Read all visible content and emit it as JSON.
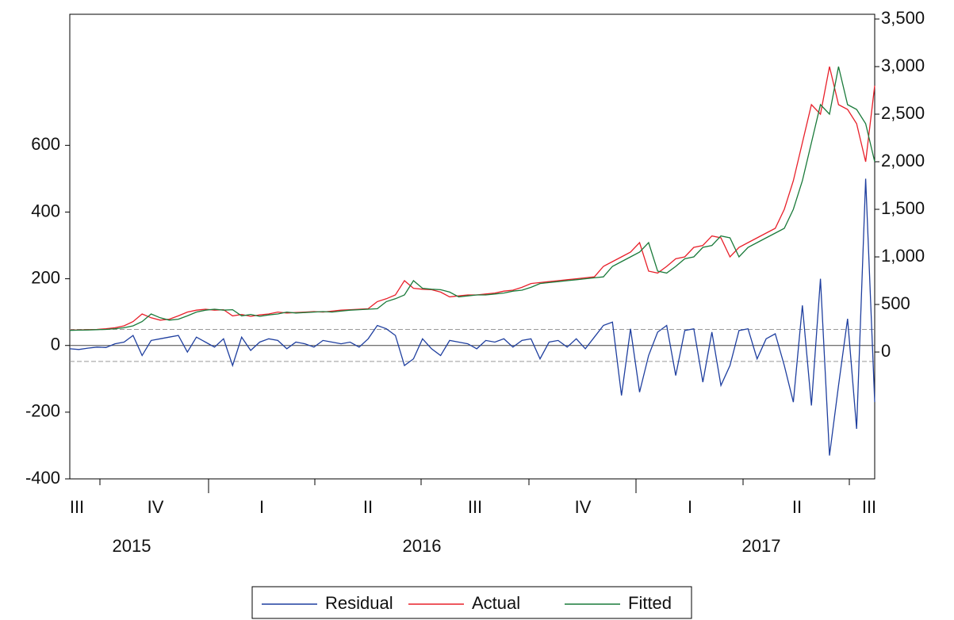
{
  "chart_data": {
    "type": "line",
    "quarter_labels": [
      "III",
      "IV",
      "I",
      "II",
      "III",
      "IV",
      "I",
      "II",
      "III"
    ],
    "years": [
      "2015",
      "2016",
      "2017"
    ],
    "ylim": [
      -400,
      993
    ],
    "yticks": [
      -400,
      -200,
      0,
      200,
      400,
      600
    ],
    "y2lim": [
      -1333,
      3550
    ],
    "y2ticks": [
      0,
      500,
      {
        "value": 1000,
        "label": "1,000"
      },
      {
        "value": 1500,
        "label": "1,500"
      },
      {
        "value": 2000,
        "label": "2,000"
      },
      {
        "value": 2500,
        "label": "2,500"
      },
      {
        "value": 3000,
        "label": "3,000"
      },
      {
        "value": 3500,
        "label": "3,500"
      }
    ],
    "std_band": 48,
    "series": [
      {
        "name": "Residual",
        "color": "#1f3f9f",
        "axis": "y",
        "values": [
          -10,
          -12,
          -8,
          -5,
          -6,
          5,
          10,
          30,
          -30,
          15,
          20,
          25,
          30,
          -20,
          25,
          10,
          -5,
          20,
          -60,
          25,
          -15,
          10,
          20,
          15,
          -10,
          10,
          5,
          -5,
          15,
          10,
          5,
          10,
          -5,
          20,
          60,
          50,
          30,
          -60,
          -40,
          20,
          -10,
          -30,
          15,
          10,
          5,
          -10,
          15,
          10,
          20,
          -5,
          15,
          20,
          -40,
          10,
          15,
          -5,
          20,
          -10,
          25,
          60,
          70,
          -150,
          50,
          -140,
          -30,
          40,
          60,
          -90,
          45,
          50,
          -110,
          40,
          -120,
          -60,
          45,
          50,
          -40,
          20,
          35,
          -60,
          -170,
          120,
          -180,
          200,
          -330,
          -120,
          80,
          -250,
          500,
          -170
        ]
      },
      {
        "name": "Actual",
        "color": "#e8202a",
        "axis": "y2",
        "values": [
          230,
          232,
          235,
          238,
          245,
          255,
          275,
          320,
          400,
          360,
          335,
          345,
          380,
          420,
          440,
          450,
          440,
          445,
          380,
          395,
          375,
          390,
          400,
          420,
          410,
          415,
          420,
          425,
          420,
          430,
          440,
          445,
          450,
          455,
          530,
          560,
          600,
          750,
          670,
          660,
          655,
          630,
          580,
          590,
          600,
          600,
          610,
          620,
          640,
          650,
          680,
          720,
          730,
          740,
          750,
          760,
          770,
          780,
          790,
          900,
          950,
          1000,
          1050,
          1150,
          850,
          830,
          900,
          980,
          1000,
          1100,
          1120,
          1220,
          1200,
          1000,
          1100,
          1150,
          1200,
          1250,
          1300,
          1500,
          1800,
          2200,
          2600,
          2500,
          3000,
          2600,
          2550,
          2400,
          2000,
          2800
        ]
      },
      {
        "name": "Fitted",
        "color": "#1a7a3a",
        "axis": "y2",
        "values": [
          228,
          230,
          232,
          235,
          238,
          245,
          255,
          275,
          320,
          400,
          360,
          335,
          345,
          380,
          420,
          440,
          450,
          440,
          445,
          380,
          395,
          375,
          390,
          400,
          420,
          410,
          415,
          420,
          425,
          420,
          430,
          440,
          445,
          450,
          455,
          530,
          560,
          600,
          750,
          670,
          660,
          655,
          630,
          580,
          590,
          600,
          600,
          610,
          620,
          640,
          650,
          680,
          720,
          730,
          740,
          750,
          760,
          770,
          780,
          790,
          900,
          950,
          1000,
          1050,
          1150,
          850,
          830,
          900,
          980,
          1000,
          1100,
          1120,
          1220,
          1200,
          1000,
          1100,
          1150,
          1200,
          1250,
          1300,
          1500,
          1800,
          2200,
          2600,
          2500,
          3000,
          2600,
          2550,
          2400,
          2000
        ]
      }
    ]
  }
}
